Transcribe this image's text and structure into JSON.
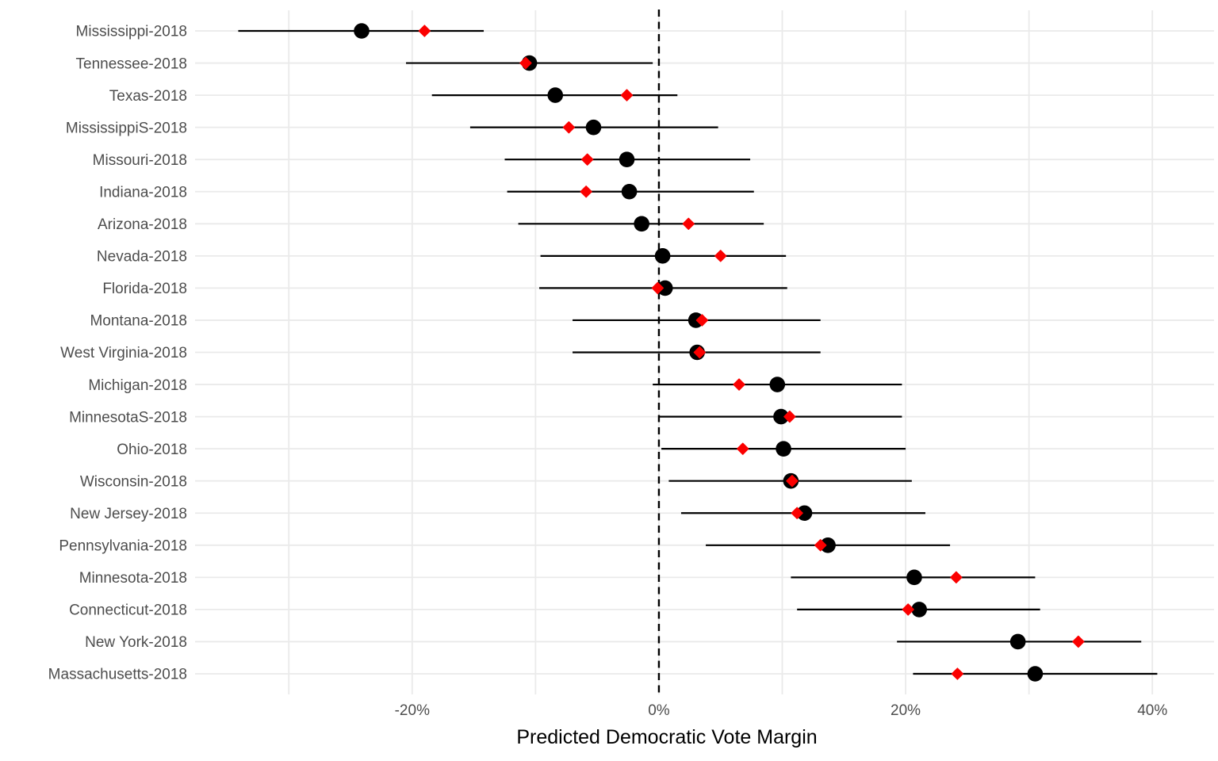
{
  "chart_data": {
    "type": "scatter",
    "title": "",
    "xlabel": "Predicted Democratic Vote Margin",
    "x_unit": "percent",
    "xlim": [
      -37.6,
      45.0
    ],
    "x_tick_values": [
      -20,
      0,
      20,
      40
    ],
    "x_tick_labels": [
      "-20%",
      "0%",
      "20%",
      "40%"
    ],
    "x_gridline_values": [
      -30,
      -20,
      -10,
      0,
      10,
      20,
      30,
      40
    ],
    "grid": "on",
    "legend_position": "none",
    "reference_line": {
      "x": 0,
      "style": "dashed"
    },
    "series": [
      {
        "name": "predicted",
        "marker": "circle",
        "color": "#000000",
        "has_interval": true
      },
      {
        "name": "actual",
        "marker": "diamond",
        "color": "#FF0000",
        "has_interval": false
      }
    ],
    "rows": [
      {
        "label": "Mississippi-2018",
        "predicted": -24.1,
        "ci_low": -34.1,
        "ci_high": -14.2,
        "actual": -19.0
      },
      {
        "label": "Tennessee-2018",
        "predicted": -10.5,
        "ci_low": -20.5,
        "ci_high": -0.5,
        "actual": -10.8
      },
      {
        "label": "Texas-2018",
        "predicted": -8.4,
        "ci_low": -18.4,
        "ci_high": 1.5,
        "actual": -2.6
      },
      {
        "label": "MississippiS-2018",
        "predicted": -5.3,
        "ci_low": -15.3,
        "ci_high": 4.8,
        "actual": -7.3
      },
      {
        "label": "Missouri-2018",
        "predicted": -2.6,
        "ci_low": -12.5,
        "ci_high": 7.4,
        "actual": -5.8
      },
      {
        "label": "Indiana-2018",
        "predicted": -2.4,
        "ci_low": -12.3,
        "ci_high": 7.7,
        "actual": -5.9
      },
      {
        "label": "Arizona-2018",
        "predicted": -1.4,
        "ci_low": -11.4,
        "ci_high": 8.5,
        "actual": 2.4
      },
      {
        "label": "Nevada-2018",
        "predicted": 0.3,
        "ci_low": -9.6,
        "ci_high": 10.3,
        "actual": 5.0
      },
      {
        "label": "Florida-2018",
        "predicted": 0.5,
        "ci_low": -9.7,
        "ci_high": 10.4,
        "actual": -0.1
      },
      {
        "label": "Montana-2018",
        "predicted": 3.0,
        "ci_low": -7.0,
        "ci_high": 13.1,
        "actual": 3.5
      },
      {
        "label": "West Virginia-2018",
        "predicted": 3.1,
        "ci_low": -7.0,
        "ci_high": 13.1,
        "actual": 3.3
      },
      {
        "label": "Michigan-2018",
        "predicted": 9.6,
        "ci_low": -0.5,
        "ci_high": 19.7,
        "actual": 6.5
      },
      {
        "label": "MinnesotaS-2018",
        "predicted": 9.9,
        "ci_low": 0.0,
        "ci_high": 19.7,
        "actual": 10.6
      },
      {
        "label": "Ohio-2018",
        "predicted": 10.1,
        "ci_low": 0.2,
        "ci_high": 20.0,
        "actual": 6.8
      },
      {
        "label": "Wisconsin-2018",
        "predicted": 10.7,
        "ci_low": 0.8,
        "ci_high": 20.5,
        "actual": 10.8
      },
      {
        "label": "New Jersey-2018",
        "predicted": 11.8,
        "ci_low": 1.8,
        "ci_high": 21.6,
        "actual": 11.2
      },
      {
        "label": "Pennsylvania-2018",
        "predicted": 13.7,
        "ci_low": 3.8,
        "ci_high": 23.6,
        "actual": 13.1
      },
      {
        "label": "Minnesota-2018",
        "predicted": 20.7,
        "ci_low": 10.7,
        "ci_high": 30.5,
        "actual": 24.1
      },
      {
        "label": "Connecticut-2018",
        "predicted": 21.1,
        "ci_low": 11.2,
        "ci_high": 30.9,
        "actual": 20.2
      },
      {
        "label": "New York-2018",
        "predicted": 29.1,
        "ci_low": 19.3,
        "ci_high": 39.1,
        "actual": 34.0
      },
      {
        "label": "Massachusetts-2018",
        "predicted": 30.5,
        "ci_low": 20.6,
        "ci_high": 40.4,
        "actual": 24.2
      }
    ]
  },
  "colors": {
    "background": "#FFFFFF",
    "gridline": "#EAEAEA",
    "axis_text": "#4D4D4D",
    "axis_title": "#000000",
    "error_bar": "#000000",
    "predicted_dot": "#000000",
    "actual_dot": "#FB0000",
    "reference_line": "#000000"
  }
}
